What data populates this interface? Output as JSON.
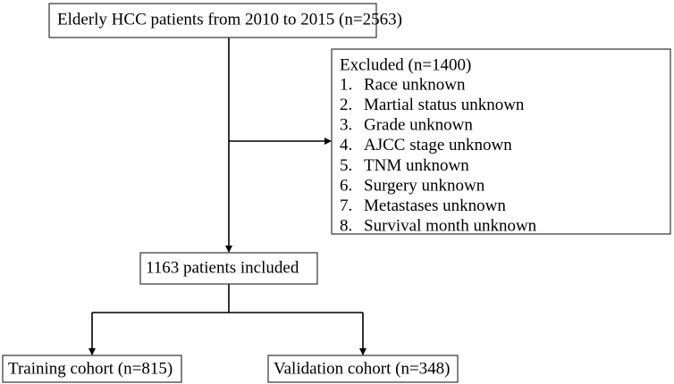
{
  "nodes": [
    {
      "label": "Elderly HCC patients from 2010 to 2015 (n=2563)"
    },
    {
      "label": "Excluded (n=1400)",
      "items": [
        {
          "marker": "1.",
          "text": "Race unknown"
        },
        {
          "marker": "2.",
          "text": "Martial status unknown"
        },
        {
          "marker": "3.",
          "text": "Grade unknown"
        },
        {
          "marker": "4.",
          "text": "AJCC stage unknown"
        },
        {
          "marker": "5.",
          "text": "TNM unknown"
        },
        {
          "marker": "6.",
          "text": "Surgery unknown"
        },
        {
          "marker": "7.",
          "text": "Metastases unknown"
        },
        {
          "marker": "8.",
          "text": "Survival month unknown"
        }
      ]
    },
    {
      "label": "1163 patients included"
    },
    {
      "label": "Training cohort (n=815)"
    },
    {
      "label": "Validation cohort (n=348)"
    }
  ]
}
